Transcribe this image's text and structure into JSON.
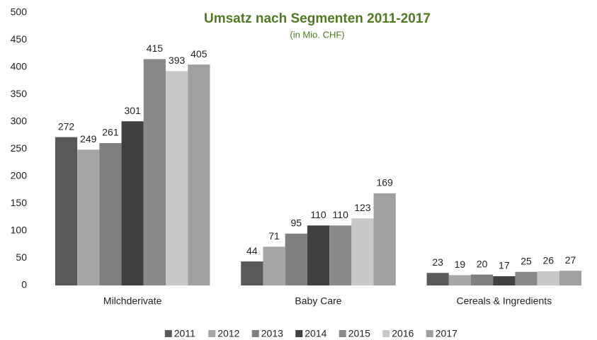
{
  "chart_data": {
    "type": "bar",
    "title": "Umsatz nach Segmenten 2011-2017",
    "subtitle": "(in Mio. CHF)",
    "categories": [
      "Milchderivate",
      "Baby Care",
      "Cereals & Ingredients"
    ],
    "series": [
      {
        "name": "2011",
        "color": "#595959",
        "values": [
          272,
          44,
          23
        ]
      },
      {
        "name": "2012",
        "color": "#a6a6a6",
        "values": [
          249,
          71,
          19
        ]
      },
      {
        "name": "2013",
        "color": "#7f7f7f",
        "values": [
          261,
          95,
          20
        ]
      },
      {
        "name": "2014",
        "color": "#404040",
        "values": [
          301,
          110,
          17
        ]
      },
      {
        "name": "2015",
        "color": "#8a8a8a",
        "values": [
          415,
          110,
          25
        ]
      },
      {
        "name": "2016",
        "color": "#c8c8c8",
        "values": [
          393,
          123,
          26
        ]
      },
      {
        "name": "2017",
        "color": "#a0a0a0",
        "values": [
          405,
          169,
          27
        ]
      }
    ],
    "ylim": [
      0,
      500
    ],
    "yticks": [
      0,
      50,
      100,
      150,
      200,
      250,
      300,
      350,
      400,
      450,
      500
    ],
    "legend": "bottom",
    "grid": false
  }
}
